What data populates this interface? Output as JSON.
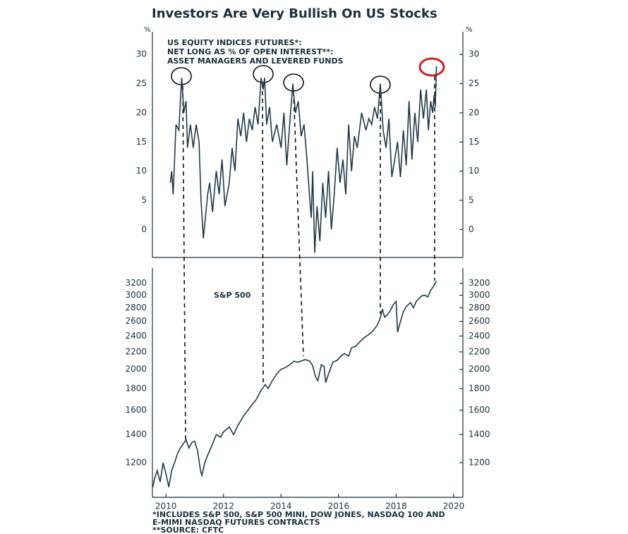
{
  "chart_data": [
    {
      "type": "line",
      "title": "Investors Are Very Bullish On US Stocks",
      "ylabel": "%",
      "annotation": [
        "US EQUITY INDICES FUTURES*:",
        "NET LONG AS % OF OPEN INTEREST**:",
        "ASSET MANAGERS AND LEVERED FUNDS"
      ],
      "color": "#1f3a45",
      "xlim": [
        2009.53,
        2020.32
      ],
      "ylim": [
        -4.8,
        33.9
      ],
      "yticks": [
        0,
        5,
        10,
        15,
        20,
        25,
        30
      ],
      "x": [
        2010.15,
        2010.2,
        2010.25,
        2010.35,
        2010.45,
        2010.5,
        2010.55,
        2010.62,
        2010.7,
        2010.75,
        2010.85,
        2010.95,
        2011.05,
        2011.15,
        2011.22,
        2011.3,
        2011.45,
        2011.52,
        2011.62,
        2011.75,
        2011.85,
        2011.95,
        2012.05,
        2012.2,
        2012.3,
        2012.4,
        2012.5,
        2012.6,
        2012.7,
        2012.8,
        2012.9,
        2013.0,
        2013.1,
        2013.2,
        2013.31,
        2013.38,
        2013.43,
        2013.5,
        2013.6,
        2013.7,
        2013.85,
        2014.0,
        2014.1,
        2014.2,
        2014.3,
        2014.41,
        2014.5,
        2014.6,
        2014.7,
        2014.8,
        2014.9,
        2015.0,
        2015.05,
        2015.1,
        2015.17,
        2015.25,
        2015.35,
        2015.45,
        2015.55,
        2015.65,
        2015.75,
        2015.85,
        2015.95,
        2016.05,
        2016.15,
        2016.25,
        2016.35,
        2016.45,
        2016.55,
        2016.65,
        2016.8,
        2016.95,
        2017.05,
        2017.15,
        2017.25,
        2017.35,
        2017.45,
        2017.55,
        2017.65,
        2017.75,
        2017.85,
        2017.95,
        2018.05,
        2018.15,
        2018.25,
        2018.35,
        2018.45,
        2018.55,
        2018.65,
        2018.75,
        2018.85,
        2018.95,
        2019.05,
        2019.12,
        2019.2,
        2019.27,
        2019.32,
        2019.36,
        2019.4
      ],
      "values": [
        8,
        10,
        6,
        18,
        17,
        22,
        26,
        20,
        22,
        14,
        18,
        14,
        18,
        15,
        5,
        -1.5,
        6,
        8,
        3,
        10,
        6,
        12,
        4,
        8,
        14,
        10,
        19,
        16,
        20,
        15,
        19,
        17,
        21,
        18,
        26,
        24,
        26,
        18,
        21,
        15,
        18,
        14,
        20,
        11,
        18,
        25,
        20,
        22,
        16,
        18,
        12,
        5,
        2,
        10,
        -4,
        4,
        -2,
        8,
        2,
        10,
        0,
        6,
        14,
        8,
        12,
        6,
        18,
        10,
        16,
        14,
        20,
        17,
        19,
        18,
        21,
        19,
        25,
        17,
        14,
        19,
        9,
        12,
        15,
        9,
        17,
        11,
        22,
        12,
        20,
        15,
        24,
        19,
        24,
        17,
        22,
        20,
        23,
        21,
        28
      ]
    },
    {
      "type": "line",
      "label": "S&P 500",
      "color": "#1f3a45",
      "log": true,
      "xlim": [
        2009.53,
        2020.32
      ],
      "xticks": [
        2010,
        2012,
        2014,
        2016,
        2018,
        2020
      ],
      "ylim": [
        993,
        3480
      ],
      "yticks": [
        1200,
        1400,
        1600,
        1800,
        2000,
        2200,
        2400,
        2600,
        2800,
        3000,
        3200
      ],
      "x": [
        2009.55,
        2009.6,
        2009.7,
        2009.8,
        2009.9,
        2010.0,
        2010.1,
        2010.2,
        2010.3,
        2010.4,
        2010.5,
        2010.6,
        2010.7,
        2010.8,
        2010.9,
        2011.0,
        2011.1,
        2011.2,
        2011.25,
        2011.35,
        2011.45,
        2011.6,
        2011.75,
        2011.9,
        2012.0,
        2012.2,
        2012.35,
        2012.5,
        2012.7,
        2012.85,
        2013.0,
        2013.15,
        2013.3,
        2013.45,
        2013.55,
        2013.7,
        2013.85,
        2014.0,
        2014.15,
        2014.3,
        2014.45,
        2014.6,
        2014.75,
        2014.85,
        2015.0,
        2015.1,
        2015.2,
        2015.28,
        2015.4,
        2015.5,
        2015.55,
        2015.65,
        2015.8,
        2015.95,
        2016.05,
        2016.2,
        2016.35,
        2016.45,
        2016.6,
        2016.75,
        2016.9,
        2017.05,
        2017.2,
        2017.35,
        2017.45,
        2017.52,
        2017.6,
        2017.7,
        2017.8,
        2017.9,
        2018.0,
        2018.05,
        2018.15,
        2018.25,
        2018.35,
        2018.5,
        2018.6,
        2018.7,
        2018.8,
        2018.9,
        2019.0,
        2019.1,
        2019.2,
        2019.3,
        2019.4
      ],
      "values": [
        1050,
        1100,
        1150,
        1080,
        1200,
        1130,
        1050,
        1150,
        1200,
        1260,
        1300,
        1330,
        1360,
        1300,
        1340,
        1350,
        1280,
        1150,
        1120,
        1200,
        1250,
        1320,
        1400,
        1380,
        1420,
        1460,
        1400,
        1470,
        1550,
        1600,
        1650,
        1700,
        1780,
        1840,
        1800,
        1880,
        1950,
        2000,
        2020,
        2050,
        2090,
        2080,
        2100,
        2110,
        2090,
        2040,
        1920,
        1880,
        2050,
        2030,
        1860,
        1950,
        2080,
        2100,
        2140,
        2180,
        2150,
        2250,
        2270,
        2330,
        2380,
        2420,
        2470,
        2550,
        2650,
        2780,
        2660,
        2700,
        2760,
        2850,
        2900,
        2450,
        2600,
        2740,
        2820,
        2880,
        2800,
        2900,
        2950,
        2990,
        3000,
        2970,
        3080,
        3150,
        3240
      ]
    }
  ],
  "footnotes": [
    "*INCLUDES S&P 500, S&P 500 MINI, DOW JONES, NASDAQ 100 AND",
    "E-MIMI NASDAQ FUTURES CONTRACTS",
    "**SOURCE: CFTC"
  ]
}
